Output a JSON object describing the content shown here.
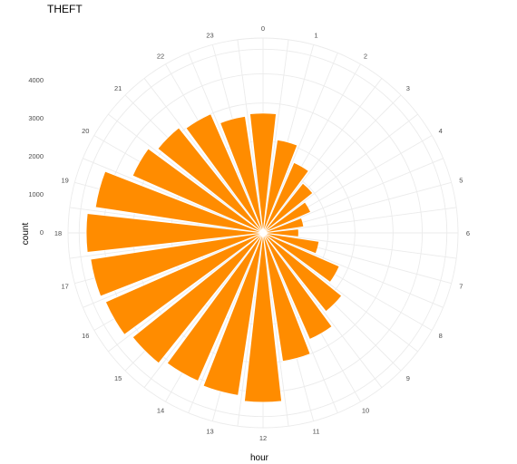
{
  "chart_data": {
    "type": "bar",
    "coord": "polar",
    "title": "THEFT",
    "xlabel": "hour",
    "ylabel": "count",
    "categories": [
      "0",
      "1",
      "2",
      "3",
      "4",
      "5",
      "6",
      "7",
      "8",
      "9",
      "10",
      "11",
      "12",
      "13",
      "14",
      "15",
      "16",
      "17",
      "18",
      "19",
      "20",
      "21",
      "22",
      "23"
    ],
    "values": [
      1700,
      1050,
      700,
      480,
      320,
      200,
      150,
      380,
      820,
      1200,
      1600,
      2000,
      3400,
      3200,
      3100,
      3300,
      3500,
      3600,
      3700,
      3400,
      2400,
      2150,
      2000,
      1650
    ],
    "bar_color": "#ff8c00",
    "grid": true,
    "yticks": [
      0,
      1000,
      2000,
      3000,
      4000
    ],
    "ylim": [
      0,
      4500
    ]
  }
}
